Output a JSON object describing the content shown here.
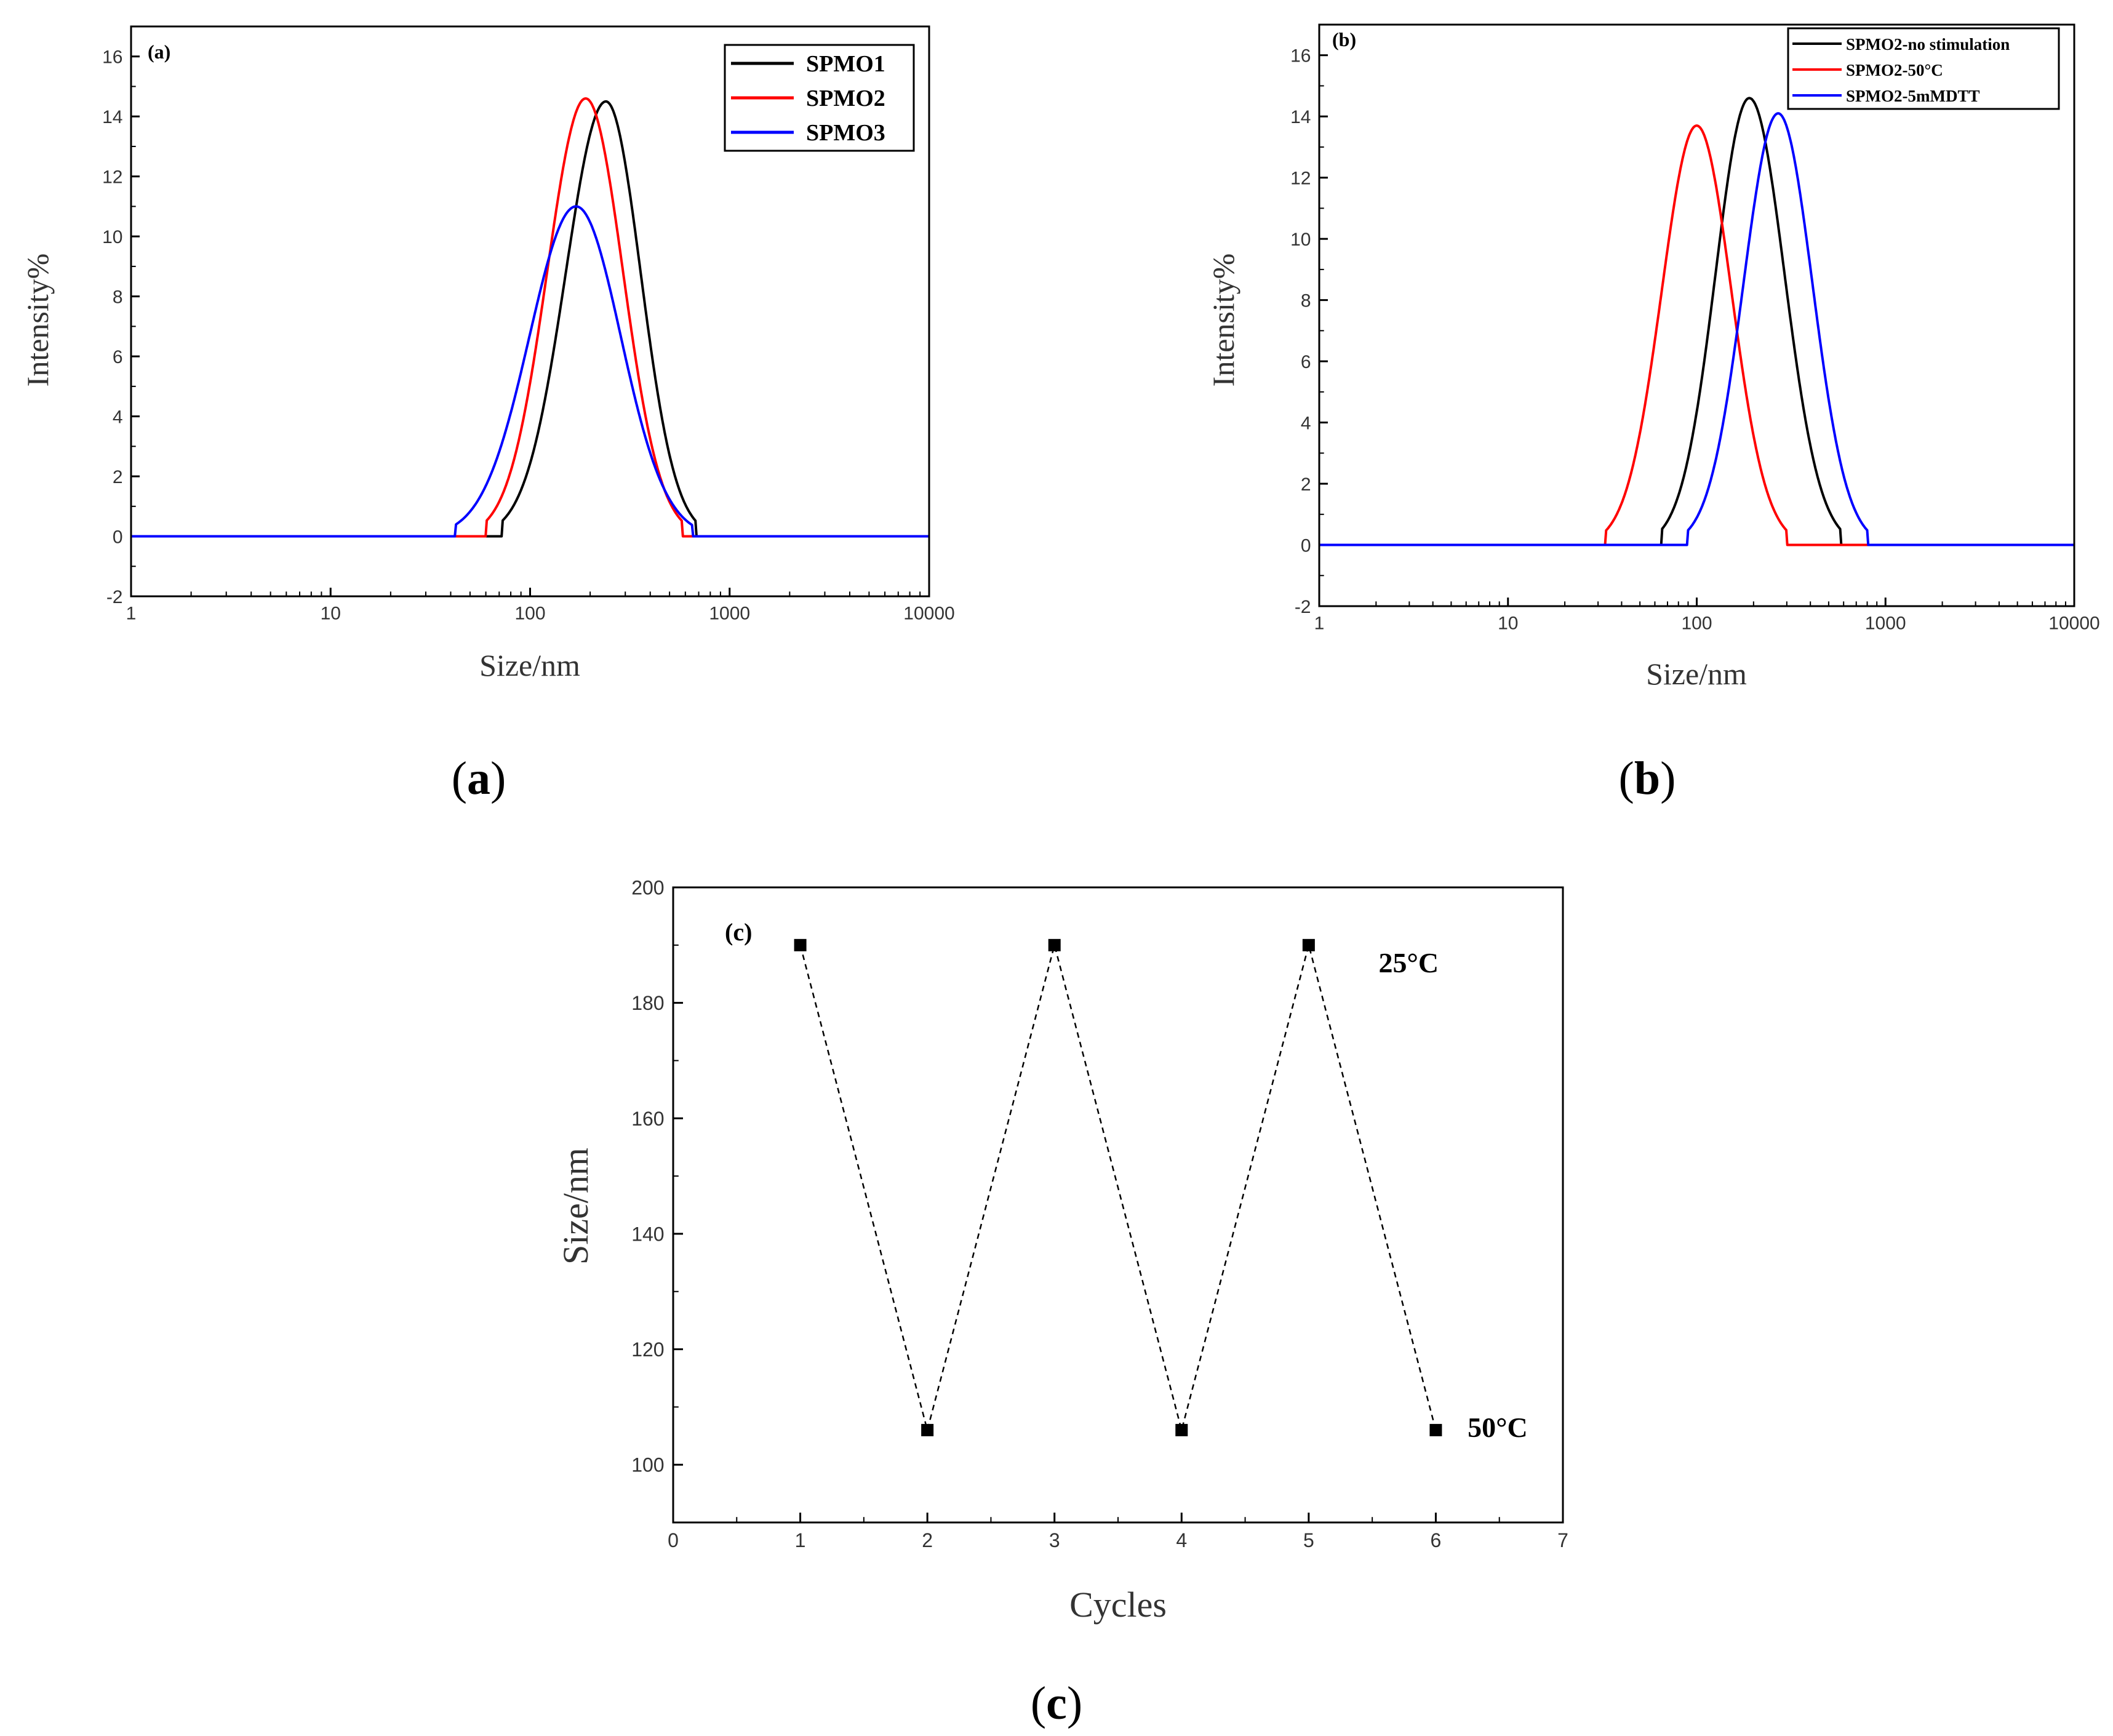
{
  "figure_captions": {
    "a": {
      "open": "(",
      "letter": "a",
      "close": ")"
    },
    "b": {
      "open": "(",
      "letter": "b",
      "close": ")"
    },
    "c": {
      "open": "(",
      "letter": "c",
      "close": ")"
    }
  },
  "chart_data": [
    {
      "id": "a",
      "type": "line",
      "panel_tag": "(a)",
      "xlabel": "Size/nm",
      "ylabel": "Intensity%",
      "xscale": "log",
      "xlim": [
        1,
        10000
      ],
      "ylim": [
        -2,
        17
      ],
      "x_ticks": [
        1,
        10,
        100,
        1000,
        10000
      ],
      "x_tick_labels": [
        "1",
        "10",
        "100",
        "1000",
        "10000"
      ],
      "y_ticks": [
        -2,
        0,
        2,
        4,
        6,
        8,
        10,
        12,
        14,
        16
      ],
      "y_tick_labels": [
        "-2",
        "0",
        "2",
        "4",
        "6",
        "8",
        "10",
        "12",
        "14",
        "16"
      ],
      "grid": false,
      "legend_position": "top-right",
      "series": [
        {
          "name": "SPMO1",
          "color": "#000000",
          "peak_x": 240,
          "peak_y": 14.5,
          "lower_cutoff": 72,
          "upper_cutoff": 680
        },
        {
          "name": "SPMO2",
          "color": "#ff0000",
          "peak_x": 190,
          "peak_y": 14.6,
          "lower_cutoff": 60,
          "upper_cutoff": 580
        },
        {
          "name": "SPMO3",
          "color": "#0000ff",
          "peak_x": 170,
          "peak_y": 11.0,
          "lower_cutoff": 42,
          "upper_cutoff": 650
        }
      ]
    },
    {
      "id": "b",
      "type": "line",
      "panel_tag": "(b)",
      "xlabel": "Size/nm",
      "ylabel": "Intensity%",
      "xscale": "log",
      "xlim": [
        1,
        10000
      ],
      "ylim": [
        -2,
        17
      ],
      "x_ticks": [
        1,
        10,
        100,
        1000,
        10000
      ],
      "x_tick_labels": [
        "1",
        "10",
        "100",
        "1000",
        "10000"
      ],
      "y_ticks": [
        -2,
        0,
        2,
        4,
        6,
        8,
        10,
        12,
        14,
        16
      ],
      "y_tick_labels": [
        "-2",
        "0",
        "2",
        "4",
        "6",
        "8",
        "10",
        "12",
        "14",
        "16"
      ],
      "grid": false,
      "legend_position": "top-right",
      "series": [
        {
          "name": "SPMO2-no stimulation",
          "color": "#000000",
          "peak_x": 190,
          "peak_y": 14.6,
          "lower_cutoff": 65,
          "upper_cutoff": 580
        },
        {
          "name": "SPMO2-50°C",
          "color": "#ff0000",
          "peak_x": 100,
          "peak_y": 13.7,
          "lower_cutoff": 33,
          "upper_cutoff": 300
        },
        {
          "name": "SPMO2-5mMDTT",
          "color": "#0000ff",
          "peak_x": 270,
          "peak_y": 14.1,
          "lower_cutoff": 90,
          "upper_cutoff": 800
        }
      ]
    },
    {
      "id": "c",
      "type": "scatter",
      "panel_tag": "(c)",
      "xlabel": "Cycles",
      "ylabel": "Size/nm",
      "xlim": [
        0,
        7
      ],
      "ylim": [
        90,
        200
      ],
      "x_ticks": [
        0,
        1,
        2,
        3,
        4,
        5,
        6,
        7
      ],
      "x_tick_labels": [
        "0",
        "1",
        "2",
        "3",
        "4",
        "5",
        "6",
        "7"
      ],
      "y_ticks": [
        100,
        120,
        140,
        160,
        180,
        200
      ],
      "y_tick_labels": [
        "100",
        "120",
        "140",
        "160",
        "180",
        "200"
      ],
      "grid": false,
      "line_style": "dashed",
      "series": [
        {
          "name": "Size",
          "x": [
            1,
            2,
            3,
            4,
            5,
            6
          ],
          "y": [
            190,
            106,
            190,
            106,
            190,
            106
          ]
        }
      ],
      "annotations": [
        {
          "text": "25°C",
          "x": 5.55,
          "y": 187
        },
        {
          "text": "50°C",
          "x": 6.25,
          "y": 106.5
        }
      ]
    }
  ]
}
